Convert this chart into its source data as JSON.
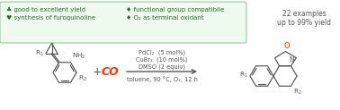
{
  "bg_color": "#ffffff",
  "arrow_color": "#555555",
  "reaction_color": "#ff3300",
  "structure_color": "#555555",
  "oxygen_color": "#ff3300",
  "green_box_color": "#edfaed",
  "green_box_edge": "#90c090",
  "above_arrow": [
    "PdCl₂  (5 mol%)",
    "CuBr₂  (10 mol%)",
    "DMSO (2 equiv)"
  ],
  "below_arrow": "toluene, 90 °C, O₂, 12 h",
  "co_label": "CO",
  "plus_label": "+",
  "bullet1": "♣ good to excellent yield",
  "bullet2": "♥ synthesis of furoquinoline",
  "bullet3": "♦ functional group compatibile",
  "bullet4": "♦ O₂ as terminal oxidant",
  "right_line1": "22 examples",
  "right_line2": "up to 99% yield",
  "font_bullet": 5.0,
  "font_small": 5.5,
  "font_arrow": 4.8
}
